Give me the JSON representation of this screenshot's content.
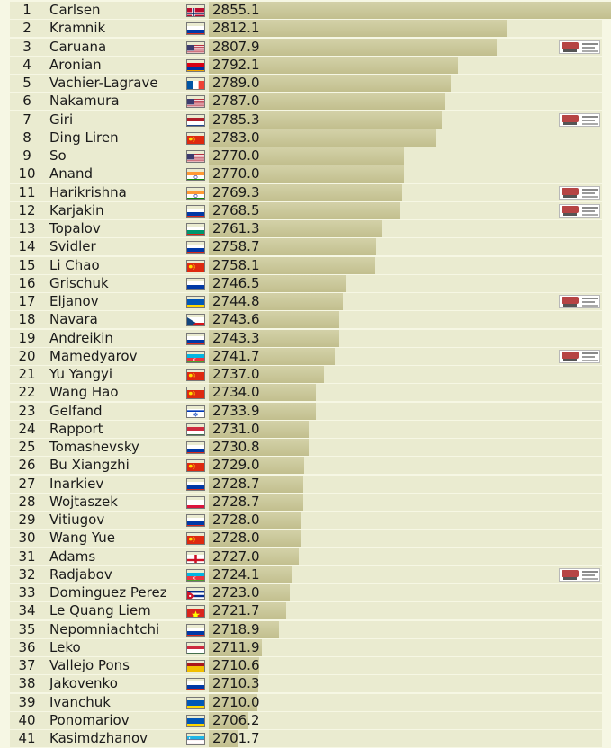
{
  "rating_list": {
    "bar_scale_min": 2690,
    "bar_scale_max": 2855.1,
    "players": [
      {
        "rank": "1",
        "name": "Carlsen",
        "flag": "norway",
        "rating": "2855.1",
        "badge": false
      },
      {
        "rank": "2",
        "name": "Kramnik",
        "flag": "russia",
        "rating": "2812.1",
        "badge": false
      },
      {
        "rank": "3",
        "name": "Caruana",
        "flag": "usa",
        "rating": "2807.9",
        "badge": true
      },
      {
        "rank": "4",
        "name": "Aronian",
        "flag": "armenia",
        "rating": "2792.1",
        "badge": false
      },
      {
        "rank": "5",
        "name": "Vachier-Lagrave",
        "flag": "france",
        "rating": "2789.0",
        "badge": false
      },
      {
        "rank": "6",
        "name": "Nakamura",
        "flag": "usa",
        "rating": "2787.0",
        "badge": false
      },
      {
        "rank": "7",
        "name": "Giri",
        "flag": "netherlands",
        "rating": "2785.3",
        "badge": true
      },
      {
        "rank": "8",
        "name": "Ding Liren",
        "flag": "china",
        "rating": "2783.0",
        "badge": false
      },
      {
        "rank": "9",
        "name": "So",
        "flag": "usa",
        "rating": "2770.0",
        "badge": false
      },
      {
        "rank": "10",
        "name": "Anand",
        "flag": "india",
        "rating": "2770.0",
        "badge": false
      },
      {
        "rank": "11",
        "name": "Harikrishna",
        "flag": "india",
        "rating": "2769.3",
        "badge": true
      },
      {
        "rank": "12",
        "name": "Karjakin",
        "flag": "russia",
        "rating": "2768.5",
        "badge": true
      },
      {
        "rank": "13",
        "name": "Topalov",
        "flag": "bulgaria",
        "rating": "2761.3",
        "badge": false
      },
      {
        "rank": "14",
        "name": "Svidler",
        "flag": "russia",
        "rating": "2758.7",
        "badge": false
      },
      {
        "rank": "15",
        "name": "Li Chao",
        "flag": "china",
        "rating": "2758.1",
        "badge": false
      },
      {
        "rank": "16",
        "name": "Grischuk",
        "flag": "russia",
        "rating": "2746.5",
        "badge": false
      },
      {
        "rank": "17",
        "name": "Eljanov",
        "flag": "ukraine",
        "rating": "2744.8",
        "badge": true
      },
      {
        "rank": "18",
        "name": "Navara",
        "flag": "czech",
        "rating": "2743.6",
        "badge": false
      },
      {
        "rank": "19",
        "name": "Andreikin",
        "flag": "russia",
        "rating": "2743.3",
        "badge": false
      },
      {
        "rank": "20",
        "name": "Mamedyarov",
        "flag": "azerbaijan",
        "rating": "2741.7",
        "badge": true
      },
      {
        "rank": "21",
        "name": "Yu Yangyi",
        "flag": "china",
        "rating": "2737.0",
        "badge": false
      },
      {
        "rank": "22",
        "name": "Wang Hao",
        "flag": "china",
        "rating": "2734.0",
        "badge": false
      },
      {
        "rank": "23",
        "name": "Gelfand",
        "flag": "israel",
        "rating": "2733.9",
        "badge": false
      },
      {
        "rank": "24",
        "name": "Rapport",
        "flag": "hungary",
        "rating": "2731.0",
        "badge": false
      },
      {
        "rank": "25",
        "name": "Tomashevsky",
        "flag": "russia",
        "rating": "2730.8",
        "badge": false
      },
      {
        "rank": "26",
        "name": "Bu Xiangzhi",
        "flag": "china",
        "rating": "2729.0",
        "badge": false
      },
      {
        "rank": "27",
        "name": "Inarkiev",
        "flag": "russia",
        "rating": "2728.7",
        "badge": false
      },
      {
        "rank": "28",
        "name": "Wojtaszek",
        "flag": "poland",
        "rating": "2728.7",
        "badge": false
      },
      {
        "rank": "29",
        "name": "Vitiugov",
        "flag": "russia",
        "rating": "2728.0",
        "badge": false
      },
      {
        "rank": "30",
        "name": "Wang Yue",
        "flag": "china",
        "rating": "2728.0",
        "badge": false
      },
      {
        "rank": "31",
        "name": "Adams",
        "flag": "england",
        "rating": "2727.0",
        "badge": false
      },
      {
        "rank": "32",
        "name": "Radjabov",
        "flag": "azerbaijan",
        "rating": "2724.1",
        "badge": true
      },
      {
        "rank": "33",
        "name": "Dominguez Perez",
        "flag": "cuba",
        "rating": "2723.0",
        "badge": false
      },
      {
        "rank": "34",
        "name": "Le Quang Liem",
        "flag": "vietnam",
        "rating": "2721.7",
        "badge": false
      },
      {
        "rank": "35",
        "name": "Nepomniachtchi",
        "flag": "russia",
        "rating": "2718.9",
        "badge": false
      },
      {
        "rank": "36",
        "name": "Leko",
        "flag": "hungary",
        "rating": "2711.9",
        "badge": false
      },
      {
        "rank": "37",
        "name": "Vallejo Pons",
        "flag": "spain",
        "rating": "2710.6",
        "badge": false
      },
      {
        "rank": "38",
        "name": "Jakovenko",
        "flag": "russia",
        "rating": "2710.3",
        "badge": false
      },
      {
        "rank": "39",
        "name": "Ivanchuk",
        "flag": "ukraine",
        "rating": "2710.0",
        "badge": false
      },
      {
        "rank": "40",
        "name": "Ponomariov",
        "flag": "ukraine",
        "rating": "2706.2",
        "badge": false
      },
      {
        "rank": "41",
        "name": "Kasimdzhanov",
        "flag": "uzbekistan",
        "rating": "2701.7",
        "badge": false
      }
    ]
  },
  "colors": {
    "page_bg": "#f6f7e4",
    "row_bg": "#eaebd0",
    "bar": "#c8c59a"
  }
}
